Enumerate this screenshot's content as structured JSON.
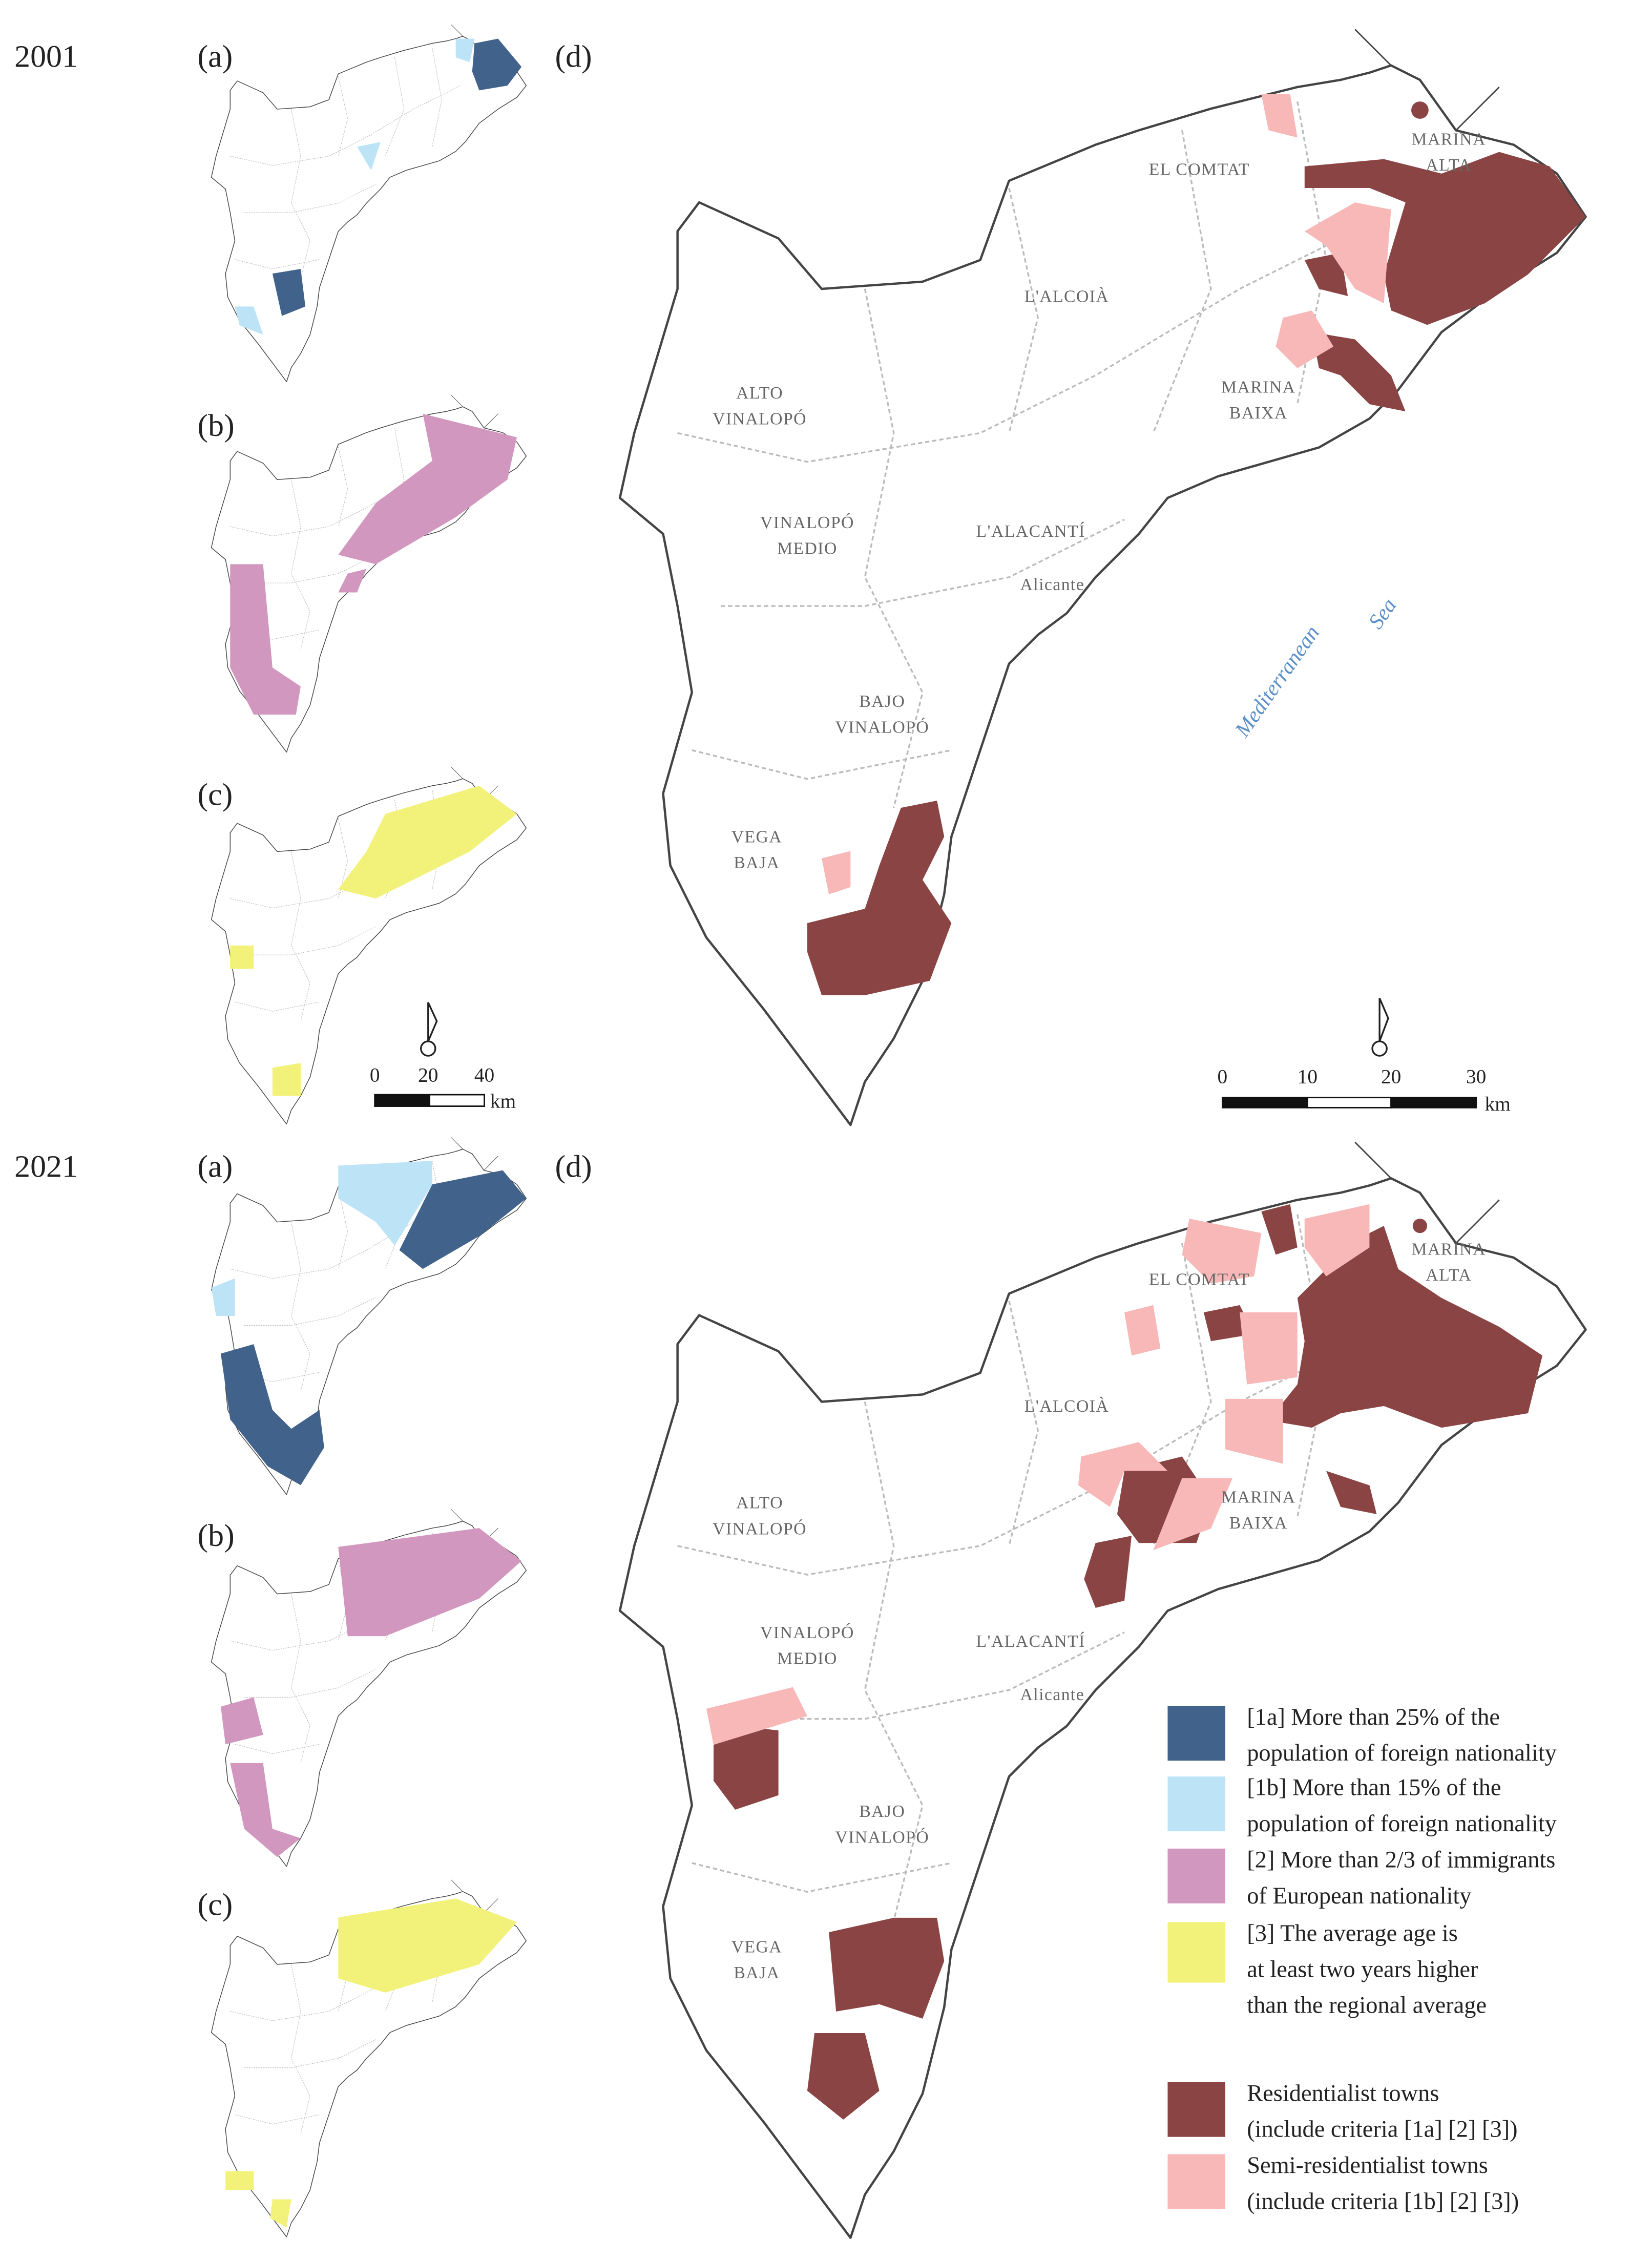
{
  "panels": [
    {
      "year": "2001",
      "labels": [
        "(a)",
        "(b)",
        "(c)",
        "(d)"
      ],
      "regions": [
        [
          "EL COMTAT"
        ],
        [
          "MARINA",
          "ALTA"
        ],
        [
          "L'ALCOIÀ"
        ],
        [
          "MARINA",
          "BAIXA"
        ],
        [
          "ALTO",
          "VINALOPÓ"
        ],
        [
          "VINALOPÓ",
          "MEDIO"
        ],
        [
          "L'ALACANTÍ"
        ],
        [
          "Alicante"
        ],
        [
          "BAJO",
          "VINALOPÓ"
        ],
        [
          "VEGA",
          "BAJA"
        ]
      ],
      "sea": [
        "Mediterranean",
        "Sea"
      ],
      "scale_small": {
        "ticks": [
          0,
          20,
          40
        ],
        "unit": "km"
      },
      "scale_large": {
        "ticks": [
          0,
          10,
          20,
          30
        ],
        "unit": "km"
      }
    },
    {
      "year": "2021",
      "labels": [
        "(a)",
        "(b)",
        "(c)",
        "(d)"
      ],
      "regions": [
        [
          "EL COMTAT"
        ],
        [
          "MARINA",
          "ALTA"
        ],
        [
          "L'ALCOIÀ"
        ],
        [
          "MARINA",
          "BAIXA"
        ],
        [
          "ALTO",
          "VINALOPÓ"
        ],
        [
          "VINALOPÓ",
          "MEDIO"
        ],
        [
          "L'ALACANTÍ"
        ],
        [
          "Alicante"
        ],
        [
          "BAJO",
          "VINALOPÓ"
        ],
        [
          "VEGA",
          "BAJA"
        ]
      ]
    }
  ],
  "legend": [
    {
      "color": "#41628a",
      "lines": [
        "[1a] More than 25% of the",
        "population of foreign nationality"
      ]
    },
    {
      "color": "#bde3f7",
      "lines": [
        "[1b] More than 15% of the",
        "population of foreign nationality"
      ]
    },
    {
      "color": "#d197be",
      "lines": [
        "[2] More than 2/3 of immigrants",
        "of European nationality"
      ]
    },
    {
      "color": "#f2f27a",
      "lines": [
        "[3] The average age is",
        "at least two years higher",
        "than the regional average"
      ]
    },
    {
      "color": "#8b4444",
      "lines": [
        "Residentialist towns",
        "(include criteria [1a] [2] [3])"
      ]
    },
    {
      "color": "#f8b8b8",
      "lines": [
        "Semi-residentialist towns",
        "(include criteria [1b] [2] [3])"
      ]
    }
  ]
}
